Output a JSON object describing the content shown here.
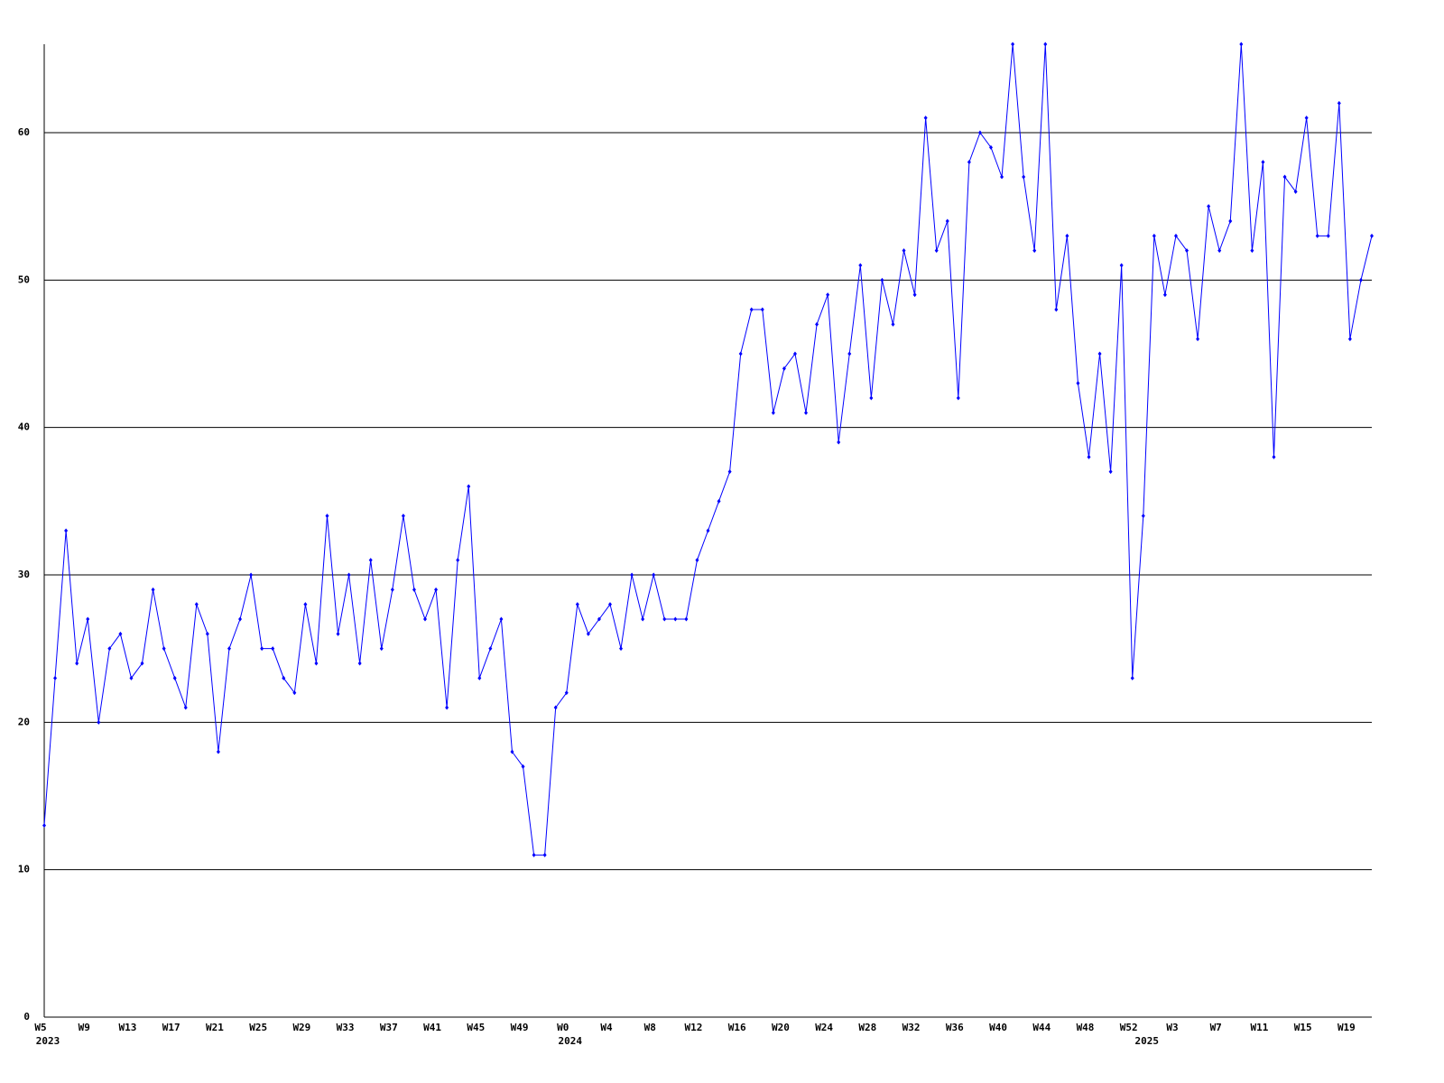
{
  "chart_data": {
    "type": "line",
    "categories": [
      "W5",
      null,
      null,
      null,
      "W9",
      null,
      null,
      null,
      "W13",
      null,
      null,
      null,
      "W17",
      null,
      null,
      null,
      "W21",
      null,
      null,
      null,
      "W25",
      null,
      null,
      null,
      "W29",
      null,
      null,
      null,
      "W33",
      null,
      null,
      null,
      "W37",
      null,
      null,
      null,
      "W41",
      null,
      null,
      null,
      "W45",
      null,
      null,
      null,
      "W49",
      null,
      null,
      null,
      "W0",
      null,
      null,
      null,
      "W4",
      null,
      null,
      null,
      "W8",
      null,
      null,
      null,
      "W12",
      null,
      null,
      null,
      "W16",
      null,
      null,
      null,
      "W20",
      null,
      null,
      null,
      "W24",
      null,
      null,
      null,
      "W28",
      null,
      null,
      null,
      "W32",
      null,
      null,
      null,
      "W36",
      null,
      null,
      null,
      "W40",
      null,
      null,
      null,
      "W44",
      null,
      null,
      null,
      "W48",
      null,
      null,
      null,
      "W52",
      null,
      null,
      null,
      "W3",
      null,
      null,
      null,
      "W7",
      null,
      null,
      null,
      "W11",
      null,
      null,
      null,
      "W15",
      null,
      null,
      null,
      "W19",
      null,
      null
    ],
    "years": [
      "2023",
      null,
      null,
      null,
      null,
      null,
      null,
      null,
      null,
      null,
      null,
      null,
      null,
      null,
      null,
      null,
      null,
      null,
      null,
      null,
      null,
      null,
      null,
      null,
      null,
      null,
      null,
      null,
      null,
      null,
      null,
      null,
      null,
      null,
      null,
      null,
      null,
      null,
      null,
      null,
      null,
      null,
      null,
      null,
      null,
      null,
      null,
      null,
      "2024",
      null,
      null,
      null,
      null,
      null,
      null,
      null,
      null,
      null,
      null,
      null,
      null,
      null,
      null,
      null,
      null,
      null,
      null,
      null,
      null,
      null,
      null,
      null,
      null,
      null,
      null,
      null,
      null,
      null,
      null,
      null,
      null,
      null,
      null,
      null,
      null,
      null,
      null,
      null,
      null,
      null,
      null,
      null,
      null,
      null,
      null,
      null,
      null,
      null,
      null,
      null,
      null,
      "2025",
      null,
      null,
      null,
      null,
      null,
      null,
      null,
      null,
      null,
      null,
      null,
      null,
      null,
      null,
      null,
      null,
      null,
      null,
      null,
      null,
      null
    ],
    "series": [
      {
        "color": "#0000ff",
        "values": [
          13,
          23,
          33,
          24,
          27,
          20,
          25,
          26,
          23,
          24,
          29,
          25,
          23,
          21,
          28,
          26,
          18,
          25,
          27,
          30,
          25,
          25,
          23,
          22,
          28,
          24,
          34,
          26,
          30,
          24,
          31,
          25,
          29,
          34,
          29,
          27,
          29,
          21,
          31,
          36,
          23,
          25,
          27,
          18,
          17,
          11,
          11,
          21,
          22,
          28,
          26,
          27,
          28,
          25,
          30,
          27,
          30,
          27,
          27,
          27,
          31,
          33,
          35,
          37,
          45,
          48,
          48,
          41,
          44,
          45,
          41,
          47,
          49,
          39,
          45,
          51,
          42,
          50,
          47,
          52,
          49,
          61,
          52,
          54,
          42,
          58,
          60,
          59,
          57,
          66,
          57,
          52,
          66,
          48,
          53,
          43,
          38,
          45,
          37,
          51,
          23,
          34,
          53,
          49,
          53,
          52,
          46,
          55,
          52,
          54,
          66,
          52,
          58,
          38,
          57,
          56,
          61,
          53,
          53,
          62,
          46,
          50,
          53
        ]
      }
    ],
    "ylim": [
      0,
      66
    ],
    "yticks": [
      0,
      10,
      20,
      30,
      40,
      50,
      60
    ],
    "grid": true
  }
}
